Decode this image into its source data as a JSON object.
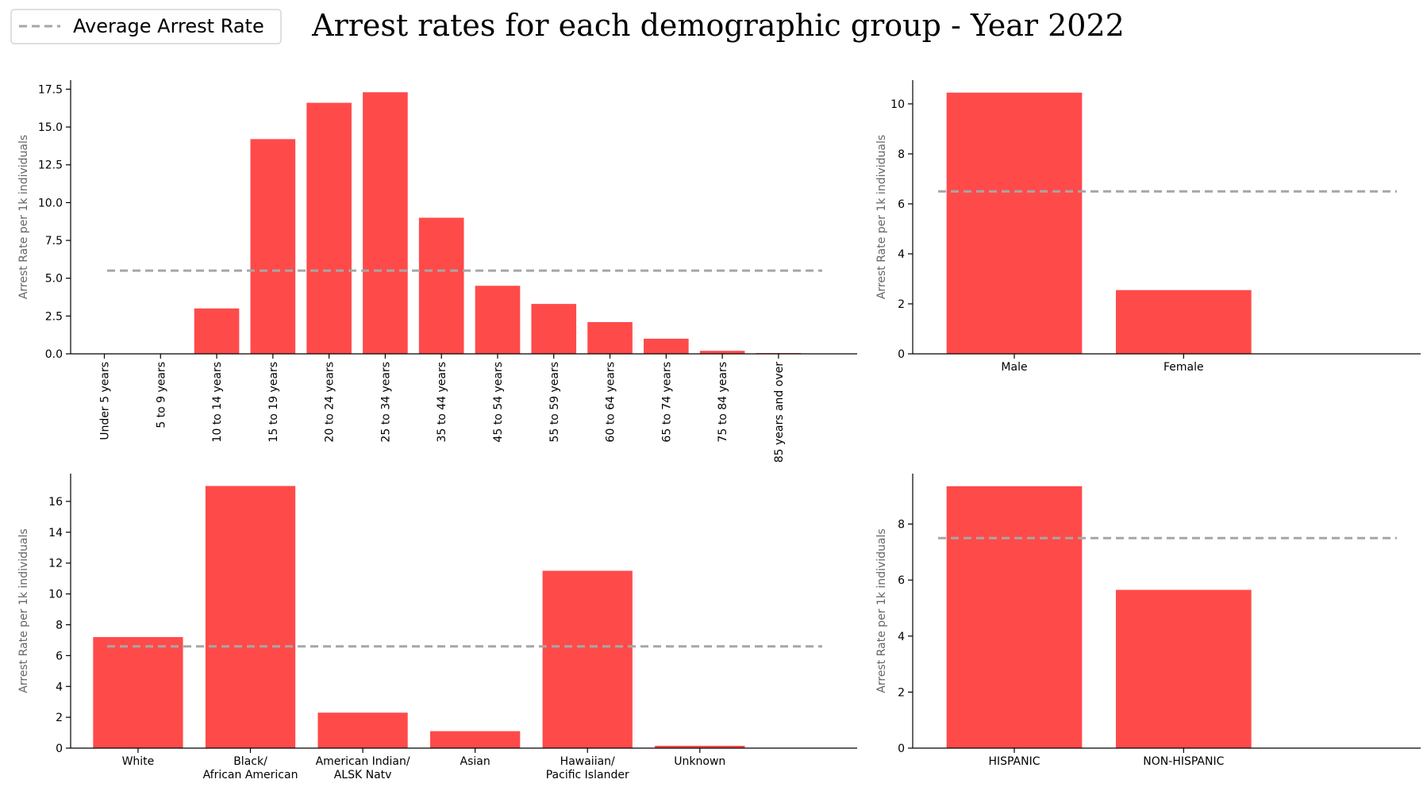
{
  "figure": {
    "title": "Arrest rates for each demographic group - Year 2022",
    "legend": {
      "label": "Average Arrest Rate",
      "placement": "top-left"
    },
    "colors": {
      "bar": "#ff4a4a",
      "average_line": "#a6a6a6",
      "ylabel": "#666666"
    }
  },
  "chart_data": [
    {
      "type": "bar",
      "categories": [
        "Under 5 years",
        "5 to 9 years",
        "10 to 14 years",
        "15 to 19 years",
        "20 to 24 years",
        "25 to 34 years",
        "35 to 44 years",
        "45 to 54 years",
        "55 to 59 years",
        "60 to 64 years",
        "65 to 74 years",
        "75 to 84 years",
        "85 years and over"
      ],
      "values": [
        0.0,
        0.0,
        3.0,
        14.2,
        16.6,
        17.3,
        9.0,
        4.5,
        3.3,
        2.1,
        1.0,
        0.2,
        0.05
      ],
      "average": 5.5,
      "ylabel": "Arrest Rate per 1k individuals",
      "ylim": [
        0,
        18.1
      ],
      "yticks": [
        0.0,
        2.5,
        5.0,
        7.5,
        10.0,
        12.5,
        15.0,
        17.5
      ],
      "ytick_labels": [
        "0.0",
        "2.5",
        "5.0",
        "7.5",
        "10.0",
        "12.5",
        "15.0",
        "17.5"
      ],
      "xtick_rotation": "vertical"
    },
    {
      "type": "bar",
      "categories": [
        "Male",
        "Female"
      ],
      "values": [
        10.45,
        2.55
      ],
      "average": 6.5,
      "ylabel": "Arrest Rate per 1k individuals",
      "ylim": [
        0,
        10.95
      ],
      "yticks": [
        0,
        2,
        4,
        6,
        8,
        10
      ],
      "ytick_labels": [
        "0",
        "2",
        "4",
        "6",
        "8",
        "10"
      ]
    },
    {
      "type": "bar",
      "categories": [
        "White",
        "Black/\nAfrican American",
        "American Indian/\nALSK Natv",
        "Asian",
        "Hawaiian/\nPacific Islander",
        "Unknown"
      ],
      "values": [
        7.2,
        17.0,
        2.3,
        1.1,
        11.5,
        0.15
      ],
      "average": 6.6,
      "ylabel": "Arrest Rate per 1k individuals",
      "ylim": [
        0,
        17.8
      ],
      "yticks": [
        0,
        2,
        4,
        6,
        8,
        10,
        12,
        14,
        16
      ],
      "ytick_labels": [
        "0",
        "2",
        "4",
        "6",
        "8",
        "10",
        "12",
        "14",
        "16"
      ]
    },
    {
      "type": "bar",
      "categories": [
        "HISPANIC",
        "NON-HISPANIC"
      ],
      "values": [
        9.35,
        5.65
      ],
      "average": 7.5,
      "ylabel": "Arrest Rate per 1k individuals",
      "ylim": [
        0,
        9.8
      ],
      "yticks": [
        0,
        2,
        4,
        6,
        8
      ],
      "ytick_labels": [
        "0",
        "2",
        "4",
        "6",
        "8"
      ]
    }
  ]
}
